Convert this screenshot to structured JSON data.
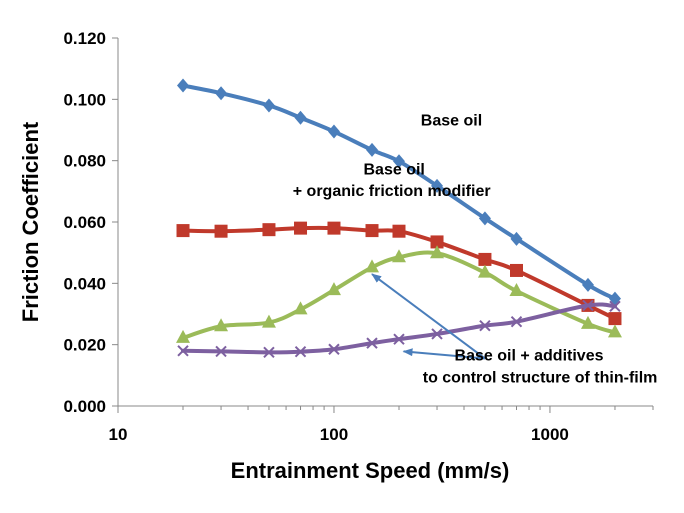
{
  "chart_data": {
    "type": "line",
    "title": "",
    "xlabel": "Entrainment Speed (mm/s)",
    "ylabel": "Friction Coefficient",
    "x_scale": "log",
    "xlim": [
      10,
      3000
    ],
    "ylim": [
      0,
      0.12
    ],
    "grid": false,
    "legend": "none",
    "x_ticks": [
      10,
      100,
      1000
    ],
    "x_tick_labels": [
      "10",
      "100",
      "1000"
    ],
    "y_ticks": [
      0,
      0.02,
      0.04,
      0.06,
      0.08,
      0.1,
      0.12
    ],
    "y_tick_labels": [
      "0.000",
      "0.020",
      "0.040",
      "0.060",
      "0.080",
      "0.100",
      "0.120"
    ],
    "series": [
      {
        "color": "#4a7ebb",
        "marker": "diamond",
        "points": [
          [
            20,
            0.1045
          ],
          [
            30,
            0.102
          ],
          [
            50,
            0.098
          ],
          [
            70,
            0.094
          ],
          [
            100,
            0.0895
          ],
          [
            150,
            0.0835
          ],
          [
            200,
            0.0798
          ],
          [
            300,
            0.0718
          ],
          [
            500,
            0.0612
          ],
          [
            700,
            0.0545
          ],
          [
            1500,
            0.0395
          ],
          [
            2000,
            0.035
          ]
        ]
      },
      {
        "color": "#c0392b",
        "marker": "square",
        "points": [
          [
            20,
            0.0572
          ],
          [
            30,
            0.057
          ],
          [
            50,
            0.0575
          ],
          [
            70,
            0.058
          ],
          [
            100,
            0.058
          ],
          [
            150,
            0.0572
          ],
          [
            200,
            0.057
          ],
          [
            300,
            0.0535
          ],
          [
            500,
            0.0478
          ],
          [
            700,
            0.0442
          ],
          [
            1500,
            0.0328
          ],
          [
            2000,
            0.0285
          ]
        ]
      },
      {
        "color": "#9bbb59",
        "marker": "triangle",
        "points": [
          [
            20,
            0.0222
          ],
          [
            30,
            0.026
          ],
          [
            50,
            0.0272
          ],
          [
            70,
            0.0315
          ],
          [
            100,
            0.0378
          ],
          [
            150,
            0.0452
          ],
          [
            200,
            0.0485
          ],
          [
            300,
            0.0498
          ],
          [
            500,
            0.0435
          ],
          [
            700,
            0.0375
          ],
          [
            1500,
            0.0268
          ],
          [
            2000,
            0.024
          ]
        ]
      },
      {
        "color": "#7d60a0",
        "marker": "x",
        "points": [
          [
            20,
            0.018
          ],
          [
            30,
            0.0178
          ],
          [
            50,
            0.0175
          ],
          [
            70,
            0.0177
          ],
          [
            100,
            0.0185
          ],
          [
            150,
            0.0205
          ],
          [
            200,
            0.0218
          ],
          [
            300,
            0.0235
          ],
          [
            500,
            0.0262
          ],
          [
            700,
            0.0275
          ],
          [
            1500,
            0.0328
          ],
          [
            2000,
            0.0325
          ]
        ]
      }
    ],
    "annotations": [
      {
        "text": "Base oil",
        "x": 350,
        "y": 0.0915
      },
      {
        "text": "Base oil",
        "x": 190,
        "y": 0.0755
      },
      {
        "text": "+ organic friction modifier",
        "x": 185,
        "y": 0.0685
      },
      {
        "text": "Base oil + additives",
        "x": 800,
        "y": 0.0148
      },
      {
        "text": "to control structure of thin-film",
        "x": 900,
        "y": 0.0077
      }
    ],
    "arrows": [
      {
        "from": [
          500,
          0.0155
        ],
        "to": [
          150,
          0.043
        ]
      },
      {
        "from": [
          500,
          0.0155
        ],
        "to": [
          210,
          0.0178
        ]
      }
    ]
  }
}
